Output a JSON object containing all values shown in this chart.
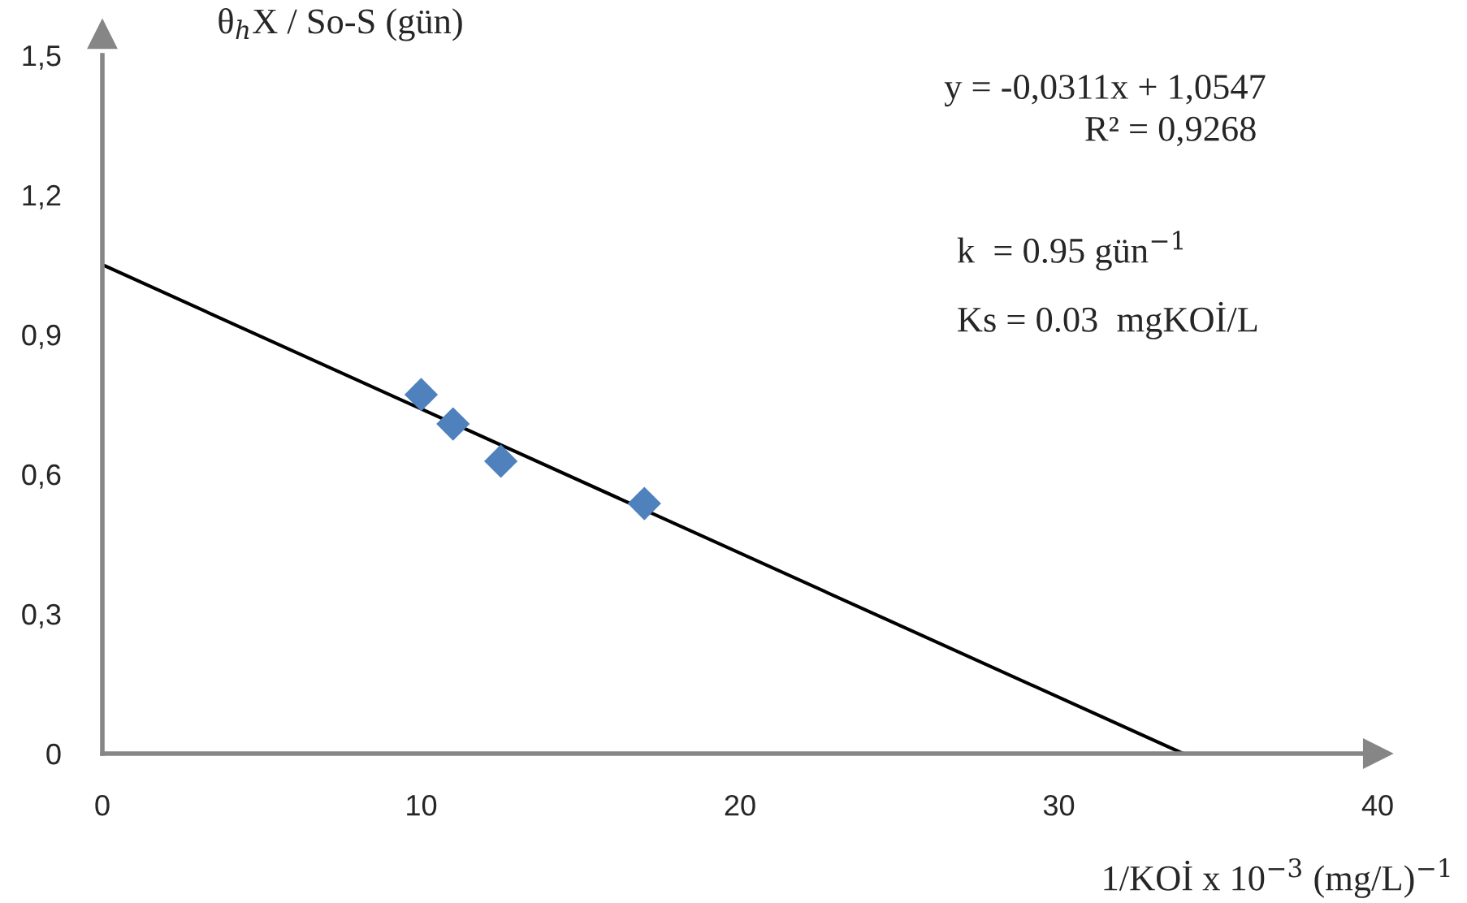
{
  "chart_data": {
    "type": "scatter",
    "xlabel": "1/KOİ x 10$^{−3}$ (mg/L)$^{−1}$",
    "ylabel": "θ$_{h}$X / So-S (gün)",
    "series": [
      {
        "color": "#4f81bd",
        "marker": "diamond",
        "x": [
          10.0,
          11.0,
          12.5,
          17.0
        ],
        "values": [
          0.771,
          0.708,
          0.628,
          0.537
        ]
      },
      {
        "type": "line",
        "color": "#000000",
        "marker": "none",
        "line_style": "solid",
        "x": [
          0,
          33.9
        ],
        "values": [
          1.05,
          0
        ]
      }
    ],
    "annotations": [
      "y = -0,0311x + 1,0547",
      "R² = 0,9268",
      "k  = 0.95 gün$^{−1}$",
      "Ks = 0.03  mgKOİ/L"
    ],
    "xlim": [
      0,
      40
    ],
    "xticks": [
      0,
      10,
      20,
      30,
      40
    ],
    "ylim": [
      0,
      1.5
    ],
    "yticks": [
      {
        "value": 0,
        "label": "0"
      },
      {
        "value": 0.3,
        "label": "0,3"
      },
      {
        "value": 0.6,
        "label": "0,6"
      },
      {
        "value": 0.9,
        "label": "0,9"
      },
      {
        "value": 1.2,
        "label": "1,2"
      },
      {
        "value": 1.5,
        "label": "1,5"
      }
    ],
    "grid": false,
    "legend": false
  }
}
